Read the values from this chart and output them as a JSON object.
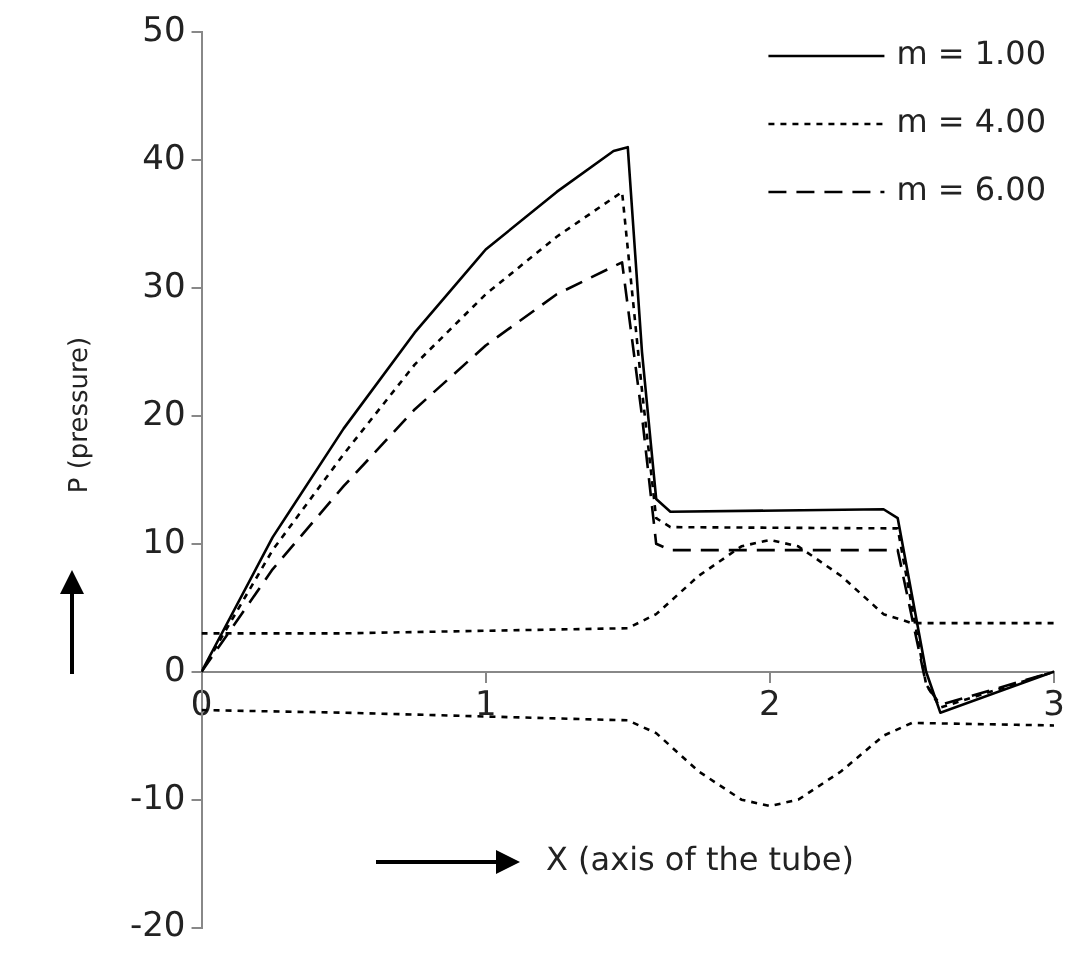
{
  "chart_data": {
    "type": "line",
    "xlabel": "X (axis of the tube)",
    "ylabel": "P (pressure)",
    "xlim": [
      0,
      3
    ],
    "xticks": [
      0,
      1,
      2,
      3
    ],
    "ylim": [
      -20,
      50
    ],
    "yticks": [
      -20,
      -10,
      0,
      10,
      20,
      30,
      40,
      50
    ],
    "grid": false,
    "legend": "top right",
    "marker": "none",
    "series": [
      {
        "name": "m = 1.00",
        "color": "#000000",
        "line_style": "solid",
        "x": [
          0,
          0.25,
          0.5,
          0.75,
          1,
          1.25,
          1.45,
          1.5,
          1.55,
          1.6,
          1.65,
          2.4,
          2.45,
          2.55,
          2.6,
          3
        ],
        "values": [
          0,
          10.5,
          19,
          26.5,
          33,
          37.5,
          40.7,
          41,
          25,
          13.5,
          12.5,
          12.7,
          12,
          0,
          -3.2,
          0
        ]
      },
      {
        "name": "m = 4.00",
        "color": "#000000",
        "line_style": "dotted",
        "x": [
          0,
          0.25,
          0.5,
          0.75,
          1,
          1.25,
          1.48,
          1.55,
          1.6,
          1.65,
          2.45,
          2.55,
          2.6,
          3
        ],
        "values": [
          0,
          9.5,
          17,
          24,
          29.5,
          34,
          37.5,
          22,
          12,
          11.3,
          11.2,
          -1,
          -2.8,
          0
        ]
      },
      {
        "name": "m = 6.00",
        "color": "#000000",
        "line_style": "dashed",
        "x": [
          0,
          0.25,
          0.5,
          0.75,
          1,
          1.25,
          1.48,
          1.55,
          1.6,
          1.65,
          2.45,
          2.55,
          2.6,
          3
        ],
        "values": [
          0,
          8,
          14.5,
          20.5,
          25.5,
          29.5,
          32,
          20,
          10,
          9.5,
          9.5,
          -1,
          -2.6,
          0
        ]
      },
      {
        "color": "#000000",
        "line_style": "dotted",
        "x": [
          0,
          0.5,
          1,
          1.5,
          1.6,
          1.75,
          1.9,
          2,
          2.1,
          2.25,
          2.4,
          2.5,
          3
        ],
        "values": [
          3,
          3,
          3.2,
          3.4,
          4.5,
          7.5,
          9.8,
          10.3,
          9.8,
          7.5,
          4.5,
          3.8,
          3.8
        ]
      },
      {
        "color": "#000000",
        "line_style": "dotted",
        "x": [
          0,
          0.5,
          1,
          1.5,
          1.6,
          1.75,
          1.9,
          2,
          2.1,
          2.25,
          2.4,
          2.5,
          3
        ],
        "values": [
          -3,
          -3.2,
          -3.5,
          -3.8,
          -4.8,
          -7.8,
          -10,
          -10.5,
          -10,
          -7.8,
          -5,
          -4,
          -4.2
        ]
      }
    ]
  }
}
